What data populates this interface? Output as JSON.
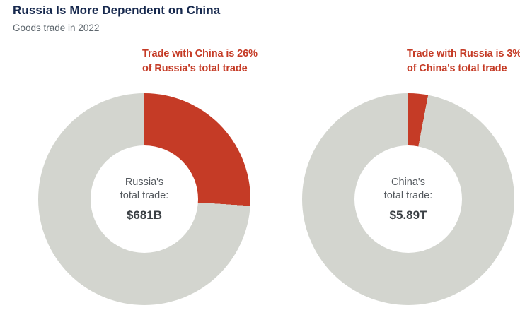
{
  "header": {
    "title": "Russia Is More Dependent on China",
    "subtitle": "Goods trade in 2022"
  },
  "colors": {
    "accent_red": "#c53b26",
    "slice_gray": "#d3d5cf",
    "title_navy": "#17294e",
    "subtitle_gray": "#5d666d",
    "center_text_gray": "#54595e"
  },
  "chart_data": [
    {
      "type": "pie",
      "name": "russia-trade-donut",
      "donut": true,
      "highlight_percent": 26,
      "total_trade": "$681B",
      "annotation": {
        "line1": "Trade with China is 26%",
        "line2": "of Russia's total trade"
      },
      "center": {
        "line1": "Russia's",
        "line2": "total trade:",
        "value": "$681B"
      },
      "slices": [
        {
          "label": "Trade with China",
          "value_pct": 26,
          "color": "#c53b26"
        },
        {
          "label": "Rest of Russia's trade",
          "value_pct": 74,
          "color": "#d3d5cf"
        }
      ],
      "legend": "none",
      "slice_start": "top-clockwise"
    },
    {
      "type": "pie",
      "name": "china-trade-donut",
      "donut": true,
      "highlight_percent": 3,
      "total_trade": "$5.89T",
      "annotation": {
        "line1": "Trade with Russia is 3%",
        "line2": "of China's total trade"
      },
      "center": {
        "line1": "China's",
        "line2": "total trade:",
        "value": "$5.89T"
      },
      "slices": [
        {
          "label": "Trade with Russia",
          "value_pct": 3,
          "color": "#c53b26"
        },
        {
          "label": "Rest of China's trade",
          "value_pct": 97,
          "color": "#d3d5cf"
        }
      ],
      "legend": "none",
      "slice_start": "top-clockwise"
    }
  ]
}
